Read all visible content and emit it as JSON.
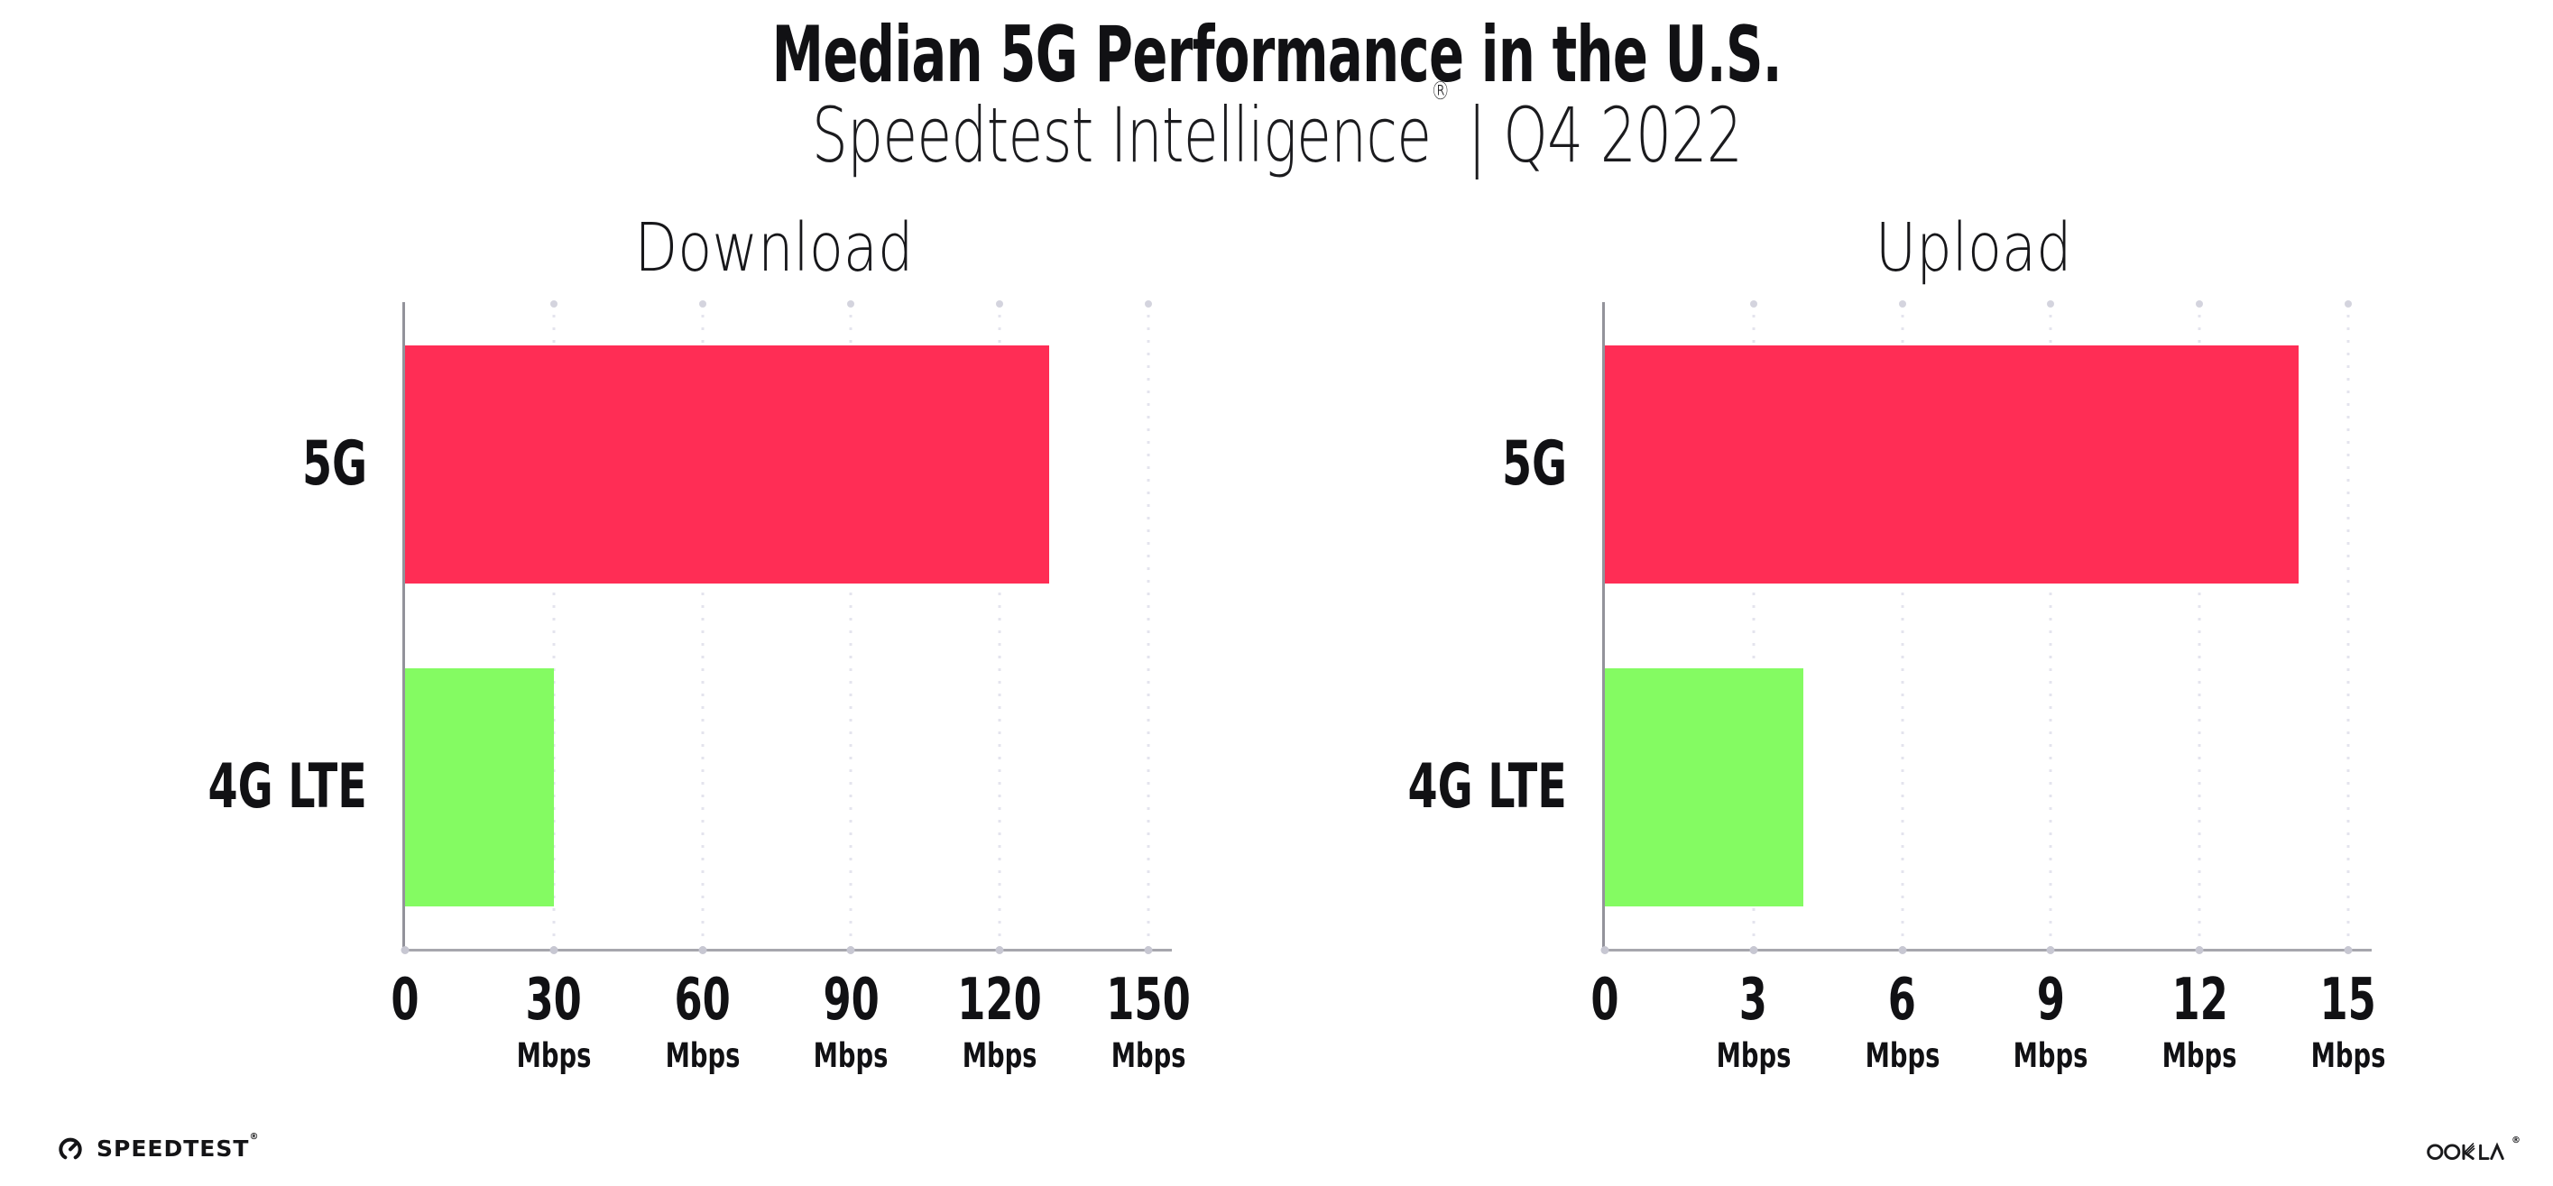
{
  "header": {
    "title": "Median 5G Performance in the U.S.",
    "subtitle": {
      "product": "Speedtest Intelligence",
      "registered_mark": "®",
      "tail": " | Q4 2022"
    }
  },
  "charts_meta": {
    "bar_row_labels": [
      "5G",
      "4G LTE"
    ],
    "unit_label": "Mbps"
  },
  "chart_data": [
    {
      "type": "bar",
      "orientation": "horizontal",
      "title": "Download",
      "categories": [
        "5G",
        "4G LTE"
      ],
      "values": [
        130,
        30
      ],
      "unit": "Mbps",
      "xlabel": "Mbps",
      "xlim": [
        0,
        150
      ],
      "xticks": [
        0,
        30,
        60,
        90,
        120,
        150
      ],
      "bar_colors": [
        "#ff2d55",
        "#84fb62"
      ],
      "grid": "vertical-dotted",
      "legend": "none"
    },
    {
      "type": "bar",
      "orientation": "horizontal",
      "title": "Upload",
      "categories": [
        "5G",
        "4G LTE"
      ],
      "values": [
        14,
        4
      ],
      "unit": "Mbps",
      "xlabel": "Mbps",
      "xlim": [
        0,
        15
      ],
      "xticks": [
        0,
        3,
        6,
        9,
        12,
        15
      ],
      "bar_colors": [
        "#ff2d55",
        "#84fb62"
      ],
      "grid": "vertical-dotted",
      "legend": "none"
    }
  ],
  "footer": {
    "speedtest_logo_text": "SPEEDTEST",
    "speedtest_registered_mark": "®",
    "ookla_logo_text": "OOKLA",
    "ookla_registered_mark": "®"
  },
  "colors": {
    "bar_5g": "#ff2d55",
    "bar_4g_lte": "#84fb62",
    "gridline": "#e4e4ee",
    "axis": "#a6a6ad",
    "text": "#111114",
    "background": "#ffffff"
  }
}
